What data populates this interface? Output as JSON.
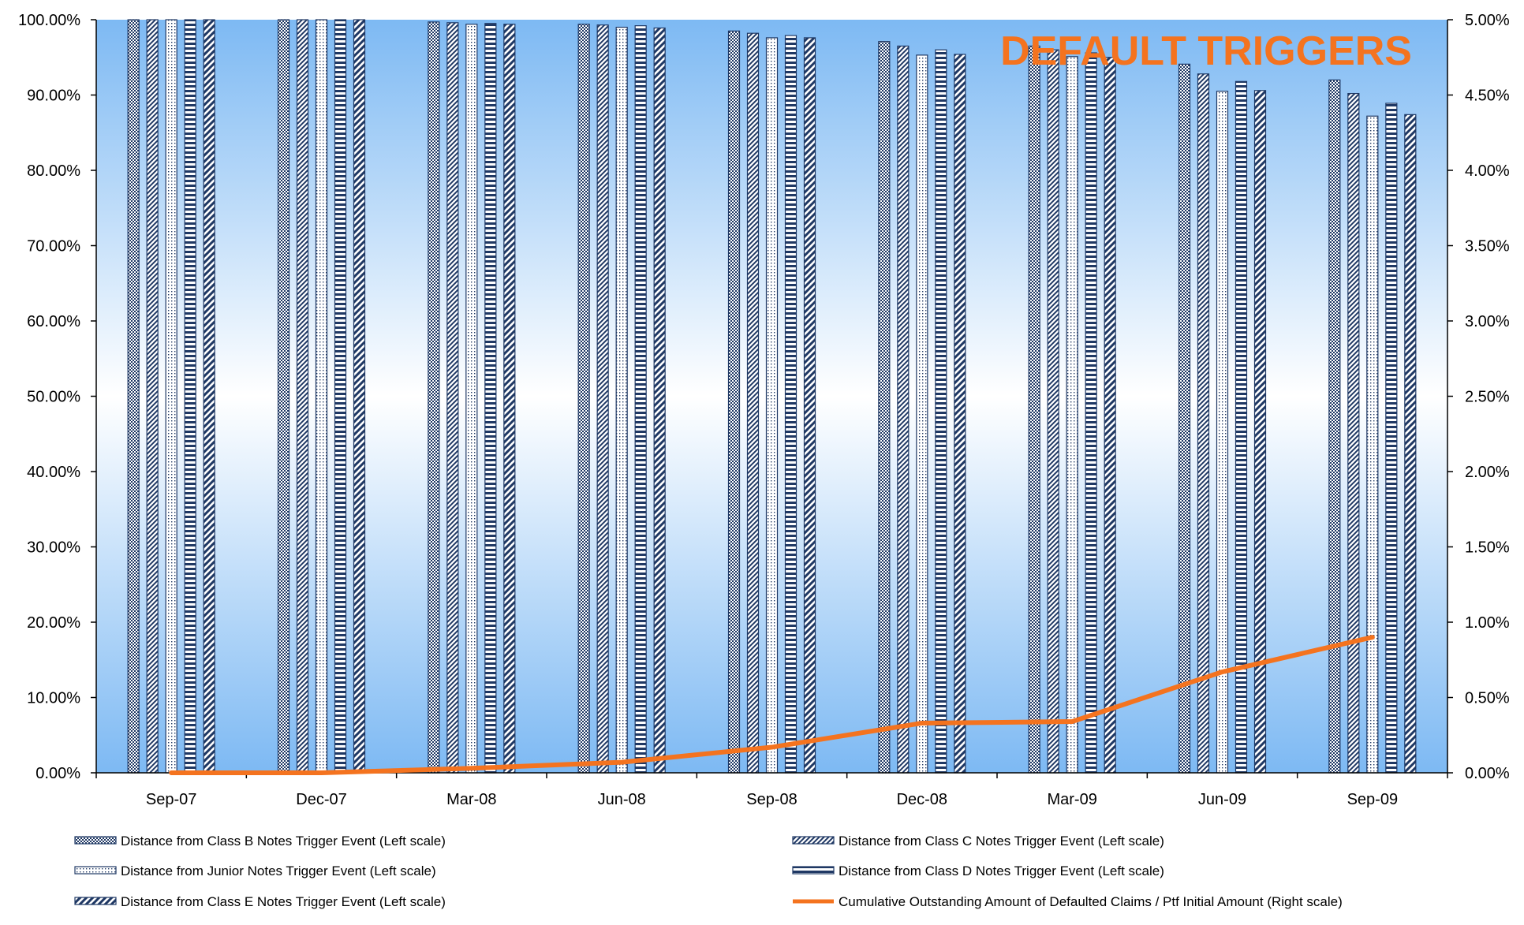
{
  "colors": {
    "bar_fill": "#ffffff",
    "bar_pattern": "#1f3864",
    "plot_top": "#7db9f3",
    "plot_mid": "#ffffff",
    "line": "#f4731f",
    "title": "#f4731f"
  },
  "chart_data": {
    "type": "bar",
    "title": "DEFAULT TRIGGERS",
    "title_position": "top-right",
    "legend_position": "bottom",
    "grid": false,
    "categories": [
      "Sep-07",
      "Dec-07",
      "Mar-08",
      "Jun-08",
      "Sep-08",
      "Dec-08",
      "Mar-09",
      "Jun-09",
      "Sep-09"
    ],
    "y_left": {
      "ylim": [
        0,
        100
      ],
      "ticks": [
        "0.00%",
        "10.00%",
        "20.00%",
        "30.00%",
        "40.00%",
        "50.00%",
        "60.00%",
        "70.00%",
        "80.00%",
        "90.00%",
        "100.00%"
      ]
    },
    "y_right": {
      "ylim": [
        0,
        5
      ],
      "ticks": [
        "0.00%",
        "0.50%",
        "1.00%",
        "1.50%",
        "2.00%",
        "2.50%",
        "3.00%",
        "3.50%",
        "4.00%",
        "4.50%",
        "5.00%"
      ]
    },
    "series": [
      {
        "name": "Distance from Class B Notes Trigger Event (Left scale)",
        "axis": "left",
        "kind": "bar",
        "pattern": "checker",
        "values": [
          100,
          100,
          99.7,
          99.4,
          98.5,
          97.1,
          96.5,
          94.1,
          92.0
        ]
      },
      {
        "name": "Distance from Class C Notes Trigger Event (Left scale)",
        "axis": "left",
        "kind": "bar",
        "pattern": "diagonal",
        "values": [
          100,
          100,
          99.6,
          99.3,
          98.2,
          96.5,
          96.0,
          92.8,
          90.2
        ]
      },
      {
        "name": "Distance from Junior Notes Trigger Event (Left scale)",
        "axis": "left",
        "kind": "bar",
        "pattern": "dots",
        "values": [
          100,
          100,
          99.4,
          99.0,
          97.6,
          95.3,
          95.1,
          90.5,
          87.2
        ]
      },
      {
        "name": "Distance from Class D Notes Trigger Event (Left scale)",
        "axis": "left",
        "kind": "bar",
        "pattern": "horizontal",
        "values": [
          100,
          100,
          99.5,
          99.2,
          97.9,
          96.0,
          95.6,
          91.8,
          88.9
        ]
      },
      {
        "name": "Distance from Class E Notes Trigger Event (Left scale)",
        "axis": "left",
        "kind": "bar",
        "pattern": "wide-diagonal",
        "values": [
          100,
          100,
          99.4,
          98.9,
          97.6,
          95.4,
          95.0,
          90.6,
          87.4
        ]
      },
      {
        "name": "Cumulative Outstanding Amount of Defaulted Claims / Ptf Initial Amount (Right scale)",
        "axis": "right",
        "kind": "line",
        "values": [
          0.0,
          0.0,
          0.03,
          0.07,
          0.17,
          0.33,
          0.34,
          0.67,
          0.9
        ]
      }
    ]
  }
}
